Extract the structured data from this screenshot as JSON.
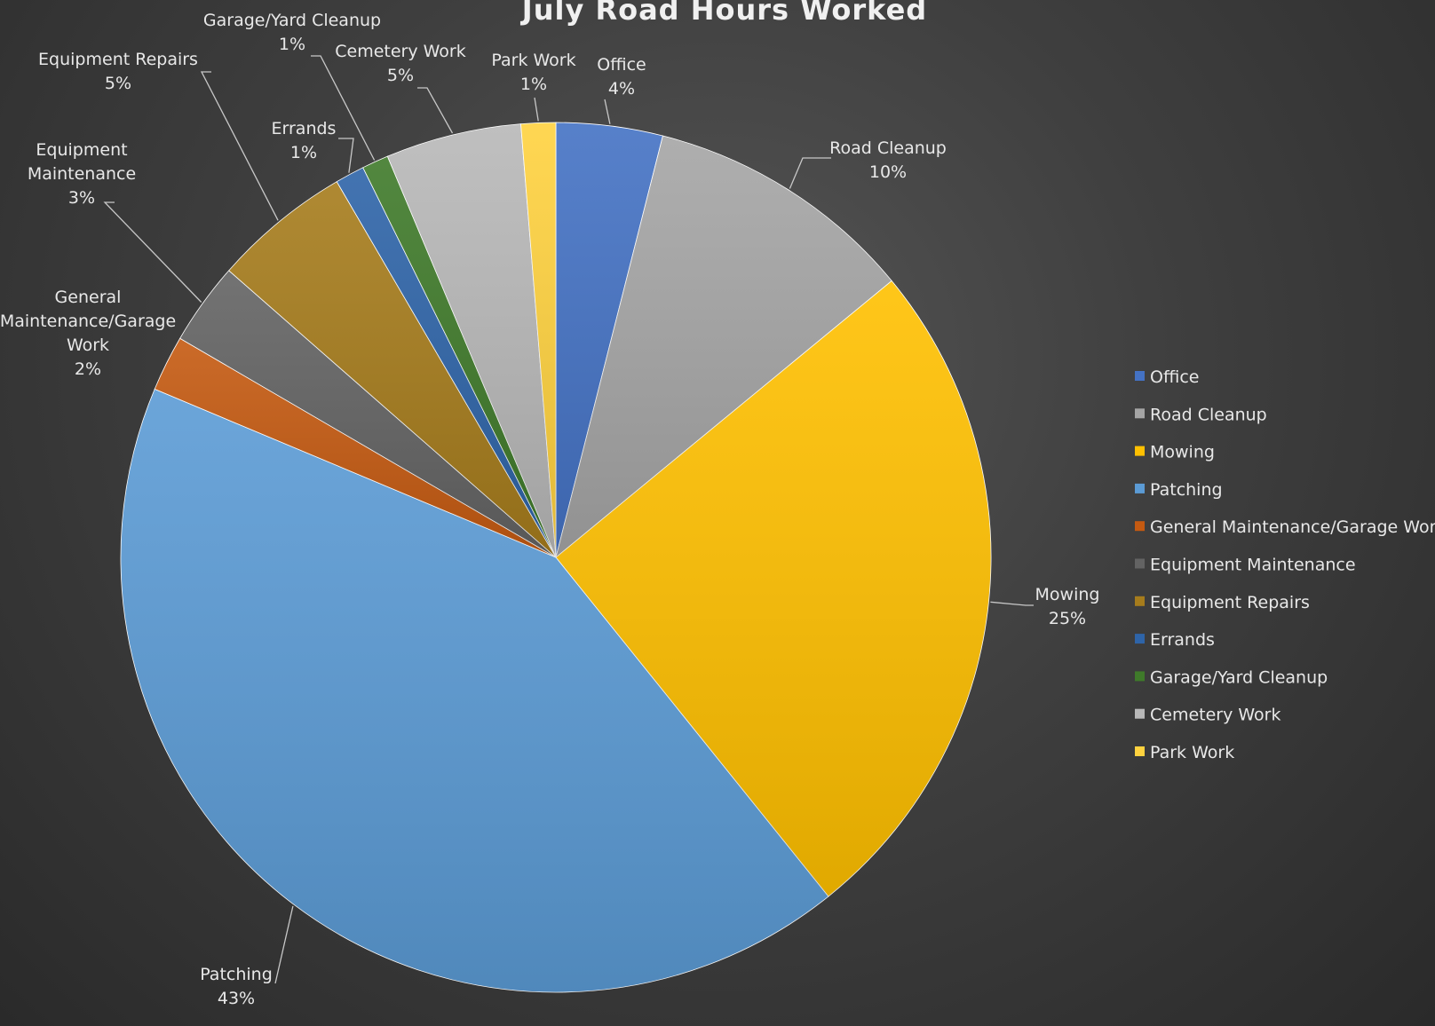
{
  "chart_data": {
    "type": "pie",
    "title": "July Road Hours Worked",
    "categories": [
      "Office",
      "Road Cleanup",
      "Mowing",
      "Patching",
      "General Maintenance/Garage Work",
      "Equipment Maintenance",
      "Equipment Repairs",
      "Errands",
      "Garage/Yard Cleanup",
      "Cemetery Work",
      "Park Work"
    ],
    "values": [
      4.0,
      10.2,
      25.5,
      42.6,
      2.1,
      3.1,
      5.2,
      1.1,
      1.0,
      5.1,
      1.3
    ],
    "percent_labels": [
      "4%",
      "10%",
      "25%",
      "43%",
      "2%",
      "3%",
      "5%",
      "1%",
      "1%",
      "5%",
      "1%"
    ],
    "label_lines": [
      [
        "Office"
      ],
      [
        "Road Cleanup"
      ],
      [
        "Mowing"
      ],
      [
        "Patching"
      ],
      [
        "General",
        "Maintenance/Garage",
        "Work"
      ],
      [
        "Equipment",
        "Maintenance"
      ],
      [
        "Equipment Repairs"
      ],
      [
        "Errands"
      ],
      [
        "Garage/Yard Cleanup"
      ],
      [
        "Cemetery Work"
      ],
      [
        "Park Work"
      ]
    ],
    "colors": [
      "#4472c4",
      "#a5a5a5",
      "#ffc000",
      "#5b9bd5",
      "#c55a11",
      "#636363",
      "#a67c1c",
      "#2e64a8",
      "#3f7a2a",
      "#b8b8b8",
      "#ffd23f"
    ],
    "legend": {
      "position": "right",
      "entries": [
        "Office",
        "Road Cleanup",
        "Mowing",
        "Patching",
        "General Maintenance/Garage Work",
        "Equipment Maintenance",
        "Equipment Repairs",
        "Errands",
        "Garage/Yard Cleanup",
        "Cemetery Work",
        "Park Work"
      ]
    },
    "start_position": "top",
    "direction": "clockwise"
  }
}
